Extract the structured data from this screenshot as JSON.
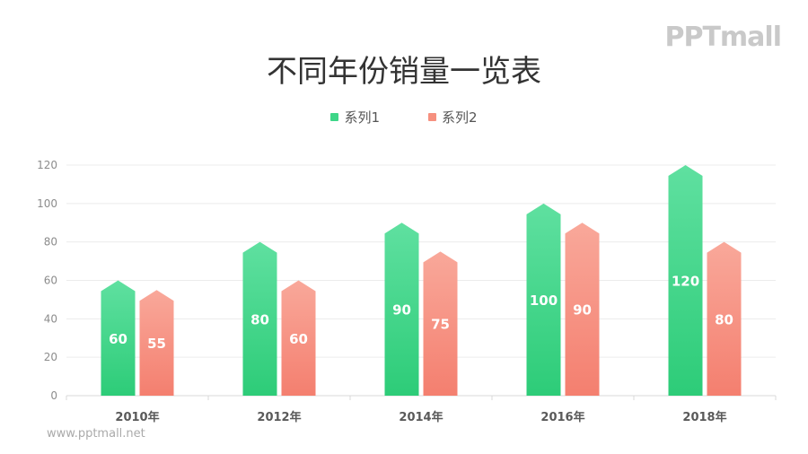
{
  "logo": "PPTmall",
  "footer": "www.pptmall.net",
  "chart_data": {
    "type": "bar",
    "title": "不同年份销量一览表",
    "categories": [
      "2010年",
      "2012年",
      "2014年",
      "2016年",
      "2018年"
    ],
    "series": [
      {
        "name": "系列1",
        "values": [
          60,
          80,
          90,
          100,
          120
        ],
        "color_top": "#5fe0a0",
        "color_bottom": "#2dcc78"
      },
      {
        "name": "系列2",
        "values": [
          55,
          60,
          75,
          90,
          80
        ],
        "color_top": "#f9a89a",
        "color_bottom": "#f47f6f"
      }
    ],
    "y_ticks": [
      "0",
      "20",
      "40",
      "60",
      "80",
      "100",
      "120"
    ],
    "ylim": [
      0,
      120
    ],
    "grid": true,
    "legend": "top-center",
    "bar_shape": "arrow-up",
    "data_labels": true
  }
}
